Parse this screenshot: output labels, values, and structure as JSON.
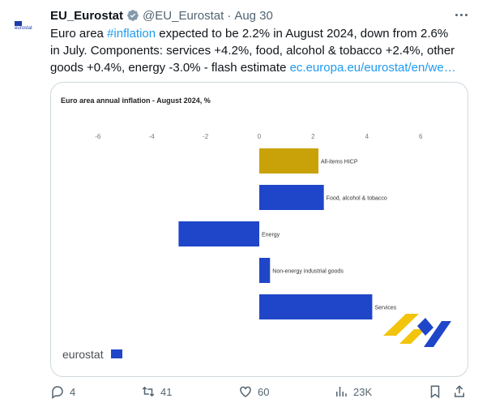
{
  "tweet": {
    "author_name": "EU_Eurostat",
    "handle": "@EU_Eurostat",
    "dot": "·",
    "time": "Aug 30",
    "avatar_text": "eurostat",
    "text_lines": [
      [
        "Euro area ",
        "#inflation",
        " expected to be 2.2% in August 2024, down from 2.6%"
      ],
      [
        "in July. Components: services +4.2%, food, alcohol & tobacco +2.4%, other"
      ],
      [
        "goods +0.4%, energy -3.0% - flash estimate ",
        "ec.europa.eu/eurostat/en/we…"
      ]
    ],
    "hashtag": "#inflation",
    "link": "ec.europa.eu/eurostat/en/we…",
    "line1_pre": "Euro area ",
    "line1_post": " expected to be 2.2% in August 2024, down from 2.6%",
    "line2": "in July. Components: services +4.2%, food, alcohol & tobacco +2.4%, other",
    "line3_pre": "goods +0.4%, energy -3.0% - flash estimate "
  },
  "card": {
    "logo_text": "eurostat"
  },
  "chart_data": {
    "type": "bar",
    "orientation": "horizontal",
    "title": "Euro area annual inflation - August 2024, %",
    "categories": [
      "All-items HICP",
      "Food, alcohol & tobacco",
      "Energy",
      "Non-energy industrial goods",
      "Services"
    ],
    "values": [
      2.2,
      2.4,
      -3.0,
      0.4,
      4.2
    ],
    "colors": [
      "#c9a20a",
      "#1f46c9",
      "#1f46c9",
      "#1f46c9",
      "#1f46c9"
    ],
    "xticks": [
      "-6",
      "-4",
      "-2",
      "0",
      "2",
      "4",
      "6"
    ],
    "xlim": [
      -6,
      6
    ],
    "grid": false,
    "legend": "none"
  },
  "actions": {
    "replies": "4",
    "retweets": "41",
    "likes": "60",
    "views": "23K"
  },
  "colors": {
    "link_blue": "#1d9bf0",
    "secondary_text": "#536471",
    "eurostat_blue": "#1f46c9",
    "eurostat_yellow": "#c9a20a"
  }
}
